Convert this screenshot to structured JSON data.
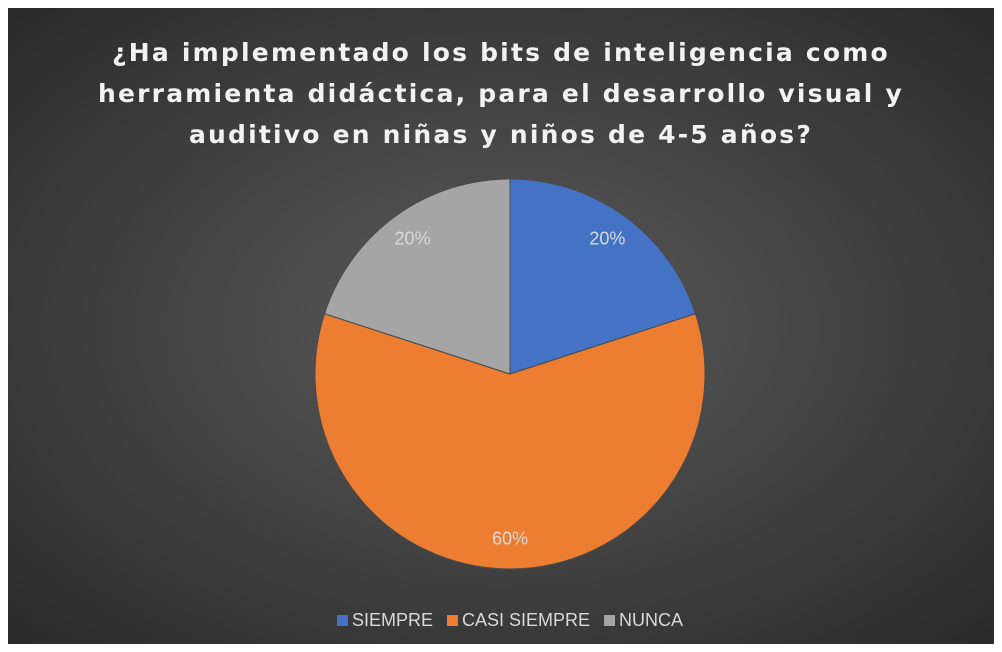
{
  "chart_data": {
    "type": "pie",
    "title": "¿Ha implementado los bits de inteligencia como herramienta didáctica, para el desarrollo visual y auditivo en niñas y niños de 4-5 años?",
    "categories": [
      "SIEMPRE",
      "CASI SIEMPRE",
      "NUNCA"
    ],
    "values": [
      20,
      60,
      20
    ],
    "value_labels": [
      "20%",
      "60%",
      "20%"
    ],
    "colors": [
      "#4472c4",
      "#ed7d31",
      "#a5a5a5"
    ],
    "legend": "bottom"
  }
}
